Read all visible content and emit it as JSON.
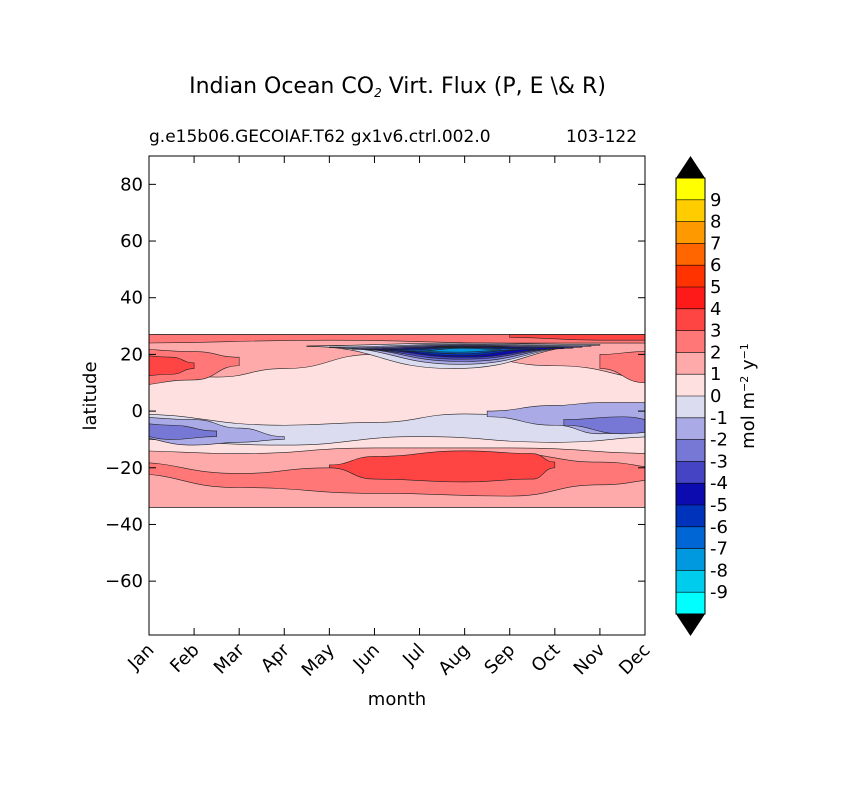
{
  "chart_data": {
    "type": "heatmap",
    "title_main": "Indian Ocean CO",
    "title_sub_char": "2",
    "title_rest": " Virt. Flux (P, E \\& R)",
    "subtitle_left": "g.e15b06.GECOIAF.T62 gx1v6.ctrl.002.0",
    "subtitle_right": "103-122",
    "xlabel": "month",
    "ylabel": "latitude",
    "x_ticks": [
      "Jan",
      "Feb",
      "Mar",
      "Apr",
      "May",
      "Jun",
      "Jul",
      "Aug",
      "Sep",
      "Oct",
      "Nov",
      "Dec"
    ],
    "y_ticks": [
      80,
      60,
      40,
      20,
      0,
      -20,
      -40,
      -60
    ],
    "ylim": [
      -79,
      90
    ],
    "data_lat_range": [
      -34,
      27
    ],
    "colorbar": {
      "label_main": "mol m",
      "label_exp1": "−2",
      "label_mid": " y",
      "label_exp2": "−1",
      "ticks": [
        "9",
        "8",
        "7",
        "6",
        "5",
        "4",
        "3",
        "2",
        "1",
        "0",
        "-1",
        "-2",
        "-3",
        "-4",
        "-5",
        "-6",
        "-7",
        "-8",
        "-9"
      ],
      "colors": [
        "#ffff00",
        "#ffcc00",
        "#ff9900",
        "#ff6600",
        "#ff3300",
        "#ff1a1a",
        "#ff4444",
        "#ff7777",
        "#ffaaaa",
        "#ffe0e0",
        "#dcdcf0",
        "#aaaae6",
        "#7777d6",
        "#4444c4",
        "#0b0bb0",
        "#0033bb",
        "#0066d6",
        "#0099e0",
        "#00ccee",
        "#00ffff"
      ],
      "extend_color": "#000000"
    },
    "bands": [
      {
        "lat": [
          23,
          27
        ],
        "level": 2,
        "months": "all"
      },
      {
        "lat": [
          13,
          22
        ],
        "level": 1,
        "months": "all"
      },
      {
        "lat": [
          10,
          19
        ],
        "level": 2,
        "months": "Jan-Mar, Dec"
      },
      {
        "lat": [
          18,
          22
        ],
        "level": -4,
        "months": "Jun-Sep"
      },
      {
        "lat": [
          -1,
          14
        ],
        "level": 0,
        "months": "all"
      },
      {
        "lat": [
          -10,
          -1
        ],
        "level": -1,
        "months": "all"
      },
      {
        "lat": [
          -9,
          2
        ],
        "level": -2,
        "months": "Oct-Dec"
      },
      {
        "lat": [
          -14,
          -9
        ],
        "level": 0,
        "months": "all"
      },
      {
        "lat": [
          -34,
          -14
        ],
        "level": 1,
        "months": "all"
      },
      {
        "lat": [
          -29,
          -16
        ],
        "level": 2,
        "months": "all"
      },
      {
        "lat": [
          -25,
          -17
        ],
        "level": 3,
        "months": "Jun-Sep"
      }
    ]
  }
}
